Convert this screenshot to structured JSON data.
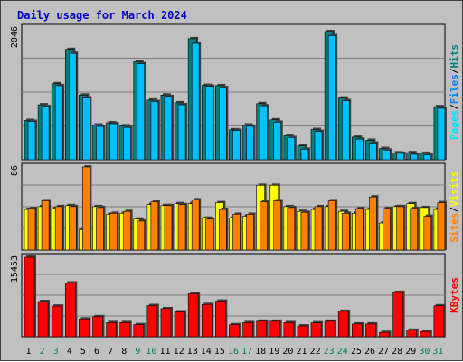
{
  "chart_data": {
    "title": "Daily usage for March 2024",
    "type": "bar",
    "categories": [
      "1",
      "2",
      "3",
      "4",
      "5",
      "6",
      "7",
      "8",
      "9",
      "10",
      "11",
      "12",
      "13",
      "14",
      "15",
      "16",
      "17",
      "18",
      "19",
      "20",
      "21",
      "22",
      "23",
      "24",
      "25",
      "26",
      "27",
      "28",
      "29",
      "30",
      "31"
    ],
    "weekend_days": [
      "2",
      "3",
      "9",
      "10",
      "16",
      "17",
      "23",
      "24",
      "30",
      "31"
    ],
    "colors": {
      "background": "#c0c0c0",
      "hits": "#008080",
      "files": "#00c0ff",
      "pages": "#00e0ff",
      "visits": "#ffff00",
      "sites": "#ff8000",
      "kbytes": "#ff0000",
      "weekday_label": "#000000",
      "weekend_label": "#00805c",
      "title": "#0000c0"
    },
    "panels": [
      {
        "id": "hits-files-pages",
        "ymax_label": "2046",
        "ymax": 2046,
        "legend": [
          {
            "label": "Pages",
            "color": "#00e0ff"
          },
          {
            "label": "/",
            "color": "#000000"
          },
          {
            "label": "Files",
            "color": "#0080ff"
          },
          {
            "label": "/",
            "color": "#000000"
          },
          {
            "label": "Hits",
            "color": "#008080"
          }
        ],
        "series": [
          {
            "name": "Hits",
            "color": "#008080",
            "values": [
              610,
              853,
              1180,
              1713,
              1005,
              540,
              575,
              527,
              1522,
              927,
              1005,
              885,
              1880,
              1155,
              1150,
              465,
              540,
              872,
              620,
              377,
              217,
              470,
              1990,
              957,
              352,
              302,
              175,
              107,
              110,
              100,
              825
            ]
          },
          {
            "name": "Files",
            "color": "#00c0ff",
            "values": [
              595,
              828,
              1150,
              1652,
              960,
              518,
              560,
              502,
              1492,
              904,
              982,
              855,
              1807,
              1140,
              1120,
              455,
              520,
              838,
              583,
              345,
              164,
              440,
              1928,
              917,
              320,
              260,
              150,
              100,
              85,
              75,
              800
            ]
          }
        ]
      },
      {
        "id": "visits-sites",
        "ymax_label": "86",
        "ymax": 86,
        "legend": [
          {
            "label": "Sites",
            "color": "#ff8000"
          },
          {
            "label": "/",
            "color": "#000000"
          },
          {
            "label": "Visits",
            "color": "#ffff00"
          }
        ],
        "series": [
          {
            "name": "Visits",
            "color": "#ffff00",
            "values": [
              42,
              45,
              43,
              46,
              21,
              45,
              37,
              38,
              32,
              47,
              46,
              48,
              48,
              33,
              49,
              33,
              35,
              67,
              67,
              45,
              40,
              42,
              45,
              40,
              38,
              42,
              28,
              45,
              48,
              44,
              42
            ]
          },
          {
            "name": "Sites",
            "color": "#ff8000",
            "values": [
              43,
              51,
              45,
              45,
              86,
              44,
              38,
              40,
              30,
              50,
              46,
              47,
              52,
              32,
              42,
              37,
              37,
              50,
              51,
              44,
              39,
              45,
              51,
              38,
              43,
              55,
              43,
              45,
              43,
              35,
              49
            ]
          }
        ]
      },
      {
        "id": "kbytes",
        "ymax_label": "15453",
        "ymax": 15453,
        "legend": [
          {
            "label": "KBytes",
            "color": "#ff0000"
          }
        ],
        "series": [
          {
            "name": "KBytes",
            "color": "#ff0000",
            "values": [
              15453,
              6850,
              5950,
              10450,
              3460,
              3910,
              2750,
              2750,
              2350,
              6060,
              5460,
              4830,
              8340,
              6270,
              6930,
              2340,
              2740,
              3020,
              3020,
              2740,
              2100,
              2700,
              3020,
              4940,
              2480,
              2480,
              840,
              8620,
              1260,
              1010,
              6020
            ]
          }
        ]
      }
    ]
  }
}
